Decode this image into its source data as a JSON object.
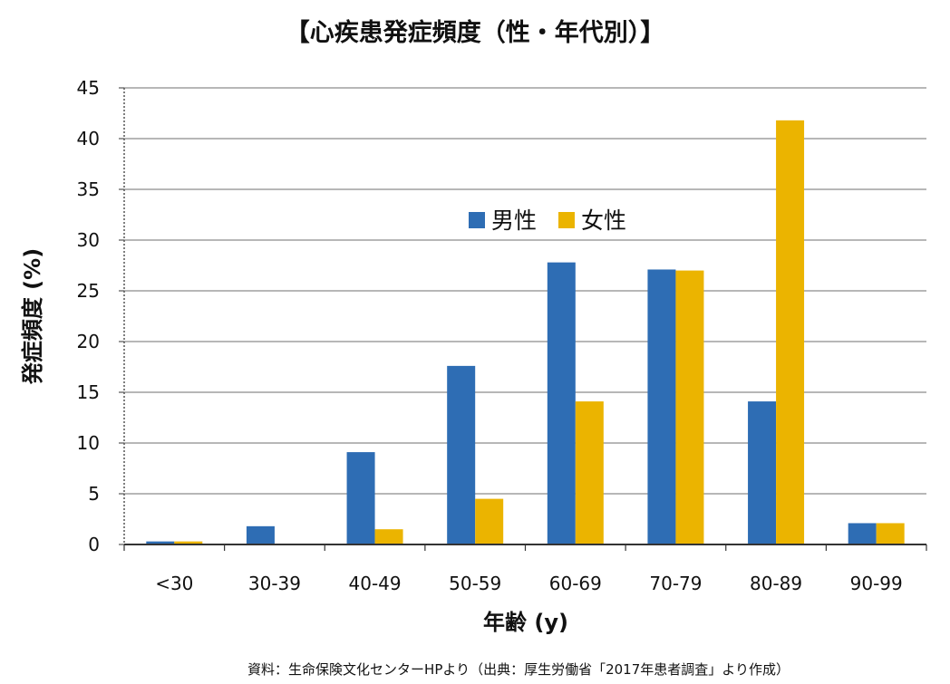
{
  "chart_data": {
    "type": "bar",
    "title": "【心疾患発症頻度（性・年代別）】",
    "xlabel": "年齢 (y)",
    "ylabel": "発症頻度 (%)",
    "ylim": [
      0,
      45
    ],
    "yticks": [
      0,
      5,
      10,
      15,
      20,
      25,
      30,
      35,
      40,
      45
    ],
    "grid": true,
    "legend_position": "top-center",
    "categories": [
      "<30",
      "30-39",
      "40-49",
      "50-59",
      "60-69",
      "70-79",
      "80-89",
      "90-99"
    ],
    "series": [
      {
        "name": "男性",
        "color": "#2E6DB4",
        "values": [
          0.3,
          1.8,
          9.1,
          17.6,
          27.8,
          27.1,
          14.1,
          2.1
        ]
      },
      {
        "name": "女性",
        "color": "#EBB400",
        "values": [
          0.3,
          0,
          1.5,
          4.5,
          14.1,
          27.0,
          41.8,
          2.1
        ]
      }
    ],
    "source": "資料：生命保険文化センターHPより（出典：厚生労働省「2017年患者調査」より作成）"
  }
}
